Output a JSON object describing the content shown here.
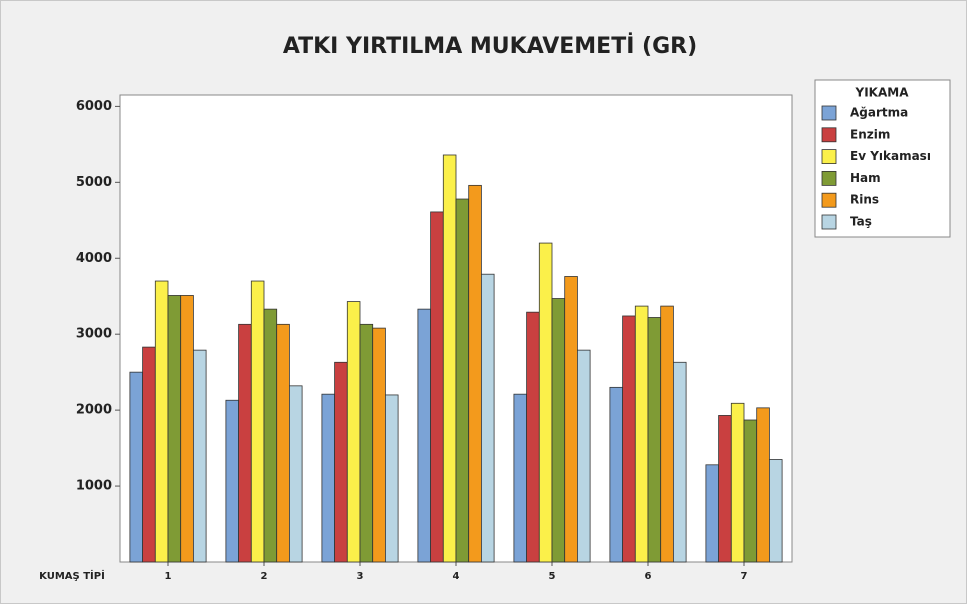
{
  "chart_data": {
    "type": "bar",
    "title": "ATKI YIRTILMA MUKAVEMETİ (GR)",
    "x_label": "KUMAŞ TİPİ",
    "categories": [
      "1",
      "2",
      "3",
      "4",
      "5",
      "6",
      "7"
    ],
    "legend_title": "YIKAMA",
    "legend": "right",
    "series": [
      {
        "name": "Ağartma",
        "color": "#7ba3d6",
        "values": [
          2500,
          2130,
          2210,
          3330,
          2210,
          2300,
          1280
        ]
      },
      {
        "name": "Enzim",
        "color": "#c94040",
        "values": [
          2830,
          3130,
          2630,
          4610,
          3290,
          3240,
          1930
        ]
      },
      {
        "name": "Ev Yıkaması",
        "color": "#fbf04a",
        "values": [
          3700,
          3700,
          3430,
          5360,
          4200,
          3370,
          2090
        ]
      },
      {
        "name": "Ham",
        "color": "#7f9b35",
        "values": [
          3510,
          3330,
          3130,
          4780,
          3470,
          3220,
          1870
        ]
      },
      {
        "name": "Rins",
        "color": "#f39a1c",
        "values": [
          3510,
          3130,
          3080,
          4960,
          3760,
          3370,
          2030
        ]
      },
      {
        "name": "Taş",
        "color": "#b8d5e3",
        "values": [
          2790,
          2320,
          2200,
          3790,
          2790,
          2630,
          1350
        ]
      }
    ],
    "ylim": [
      0,
      6150
    ],
    "yticks": [
      1000,
      2000,
      3000,
      4000,
      5000,
      6000
    ]
  }
}
